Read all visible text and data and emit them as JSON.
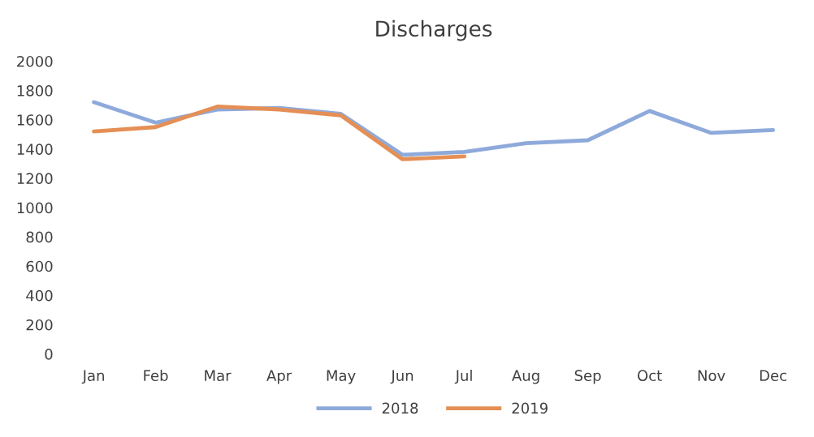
{
  "chart_data": {
    "type": "line",
    "title": "Discharges",
    "categories": [
      "Jan",
      "Feb",
      "Mar",
      "Apr",
      "May",
      "Jun",
      "Jul",
      "Aug",
      "Sep",
      "Oct",
      "Nov",
      "Dec"
    ],
    "series": [
      {
        "name": "2018",
        "color": "#8eaadb",
        "values": [
          1720,
          1580,
          1670,
          1680,
          1640,
          1360,
          1380,
          1440,
          1460,
          1660,
          1510,
          1530
        ]
      },
      {
        "name": "2019",
        "color": "#e58f55",
        "values": [
          1520,
          1550,
          1690,
          1670,
          1630,
          1330,
          1350,
          null,
          null,
          null,
          null,
          null
        ]
      }
    ],
    "ylim": [
      0,
      2000
    ],
    "yticks": [
      0,
      200,
      400,
      600,
      800,
      1000,
      1200,
      1400,
      1600,
      1800,
      2000
    ],
    "grid": false,
    "legend": "bottom",
    "marker": "none",
    "line_style": "solid"
  }
}
